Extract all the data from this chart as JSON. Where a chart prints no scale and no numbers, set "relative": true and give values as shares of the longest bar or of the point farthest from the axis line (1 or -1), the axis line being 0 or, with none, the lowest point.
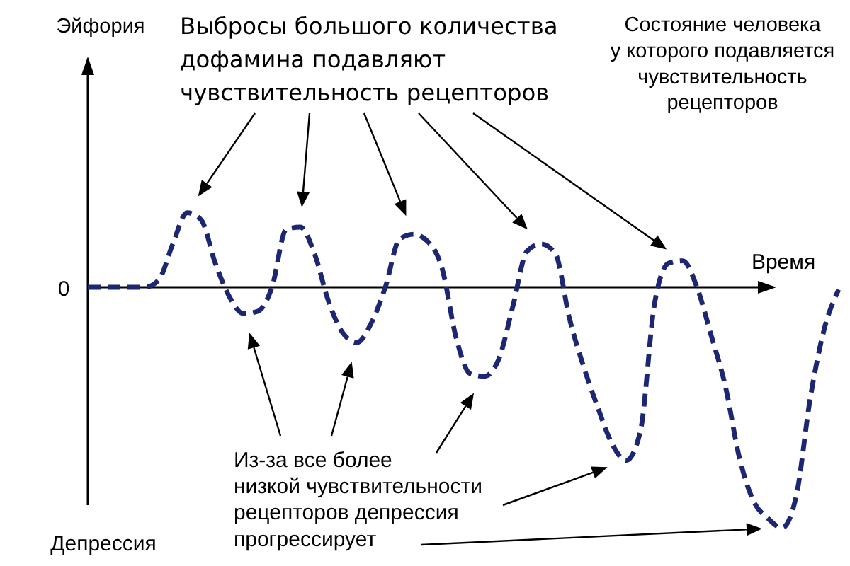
{
  "chart_data": {
    "type": "line",
    "relative": true,
    "xlabel": "Время",
    "line_style": "dashed",
    "categories": [
      null,
      null,
      null,
      null,
      null,
      null,
      null,
      null,
      null,
      null,
      null,
      null,
      null,
      null,
      null,
      null,
      null,
      null,
      null,
      null,
      null,
      null,
      null,
      null,
      null,
      null,
      null,
      null,
      null,
      null,
      null,
      null,
      null,
      null,
      null,
      null,
      null,
      null,
      null,
      null,
      null,
      null,
      null,
      null,
      null,
      null,
      null,
      null,
      null,
      null,
      null,
      null,
      null,
      null
    ],
    "series": [
      {
        "color": "#1c2671",
        "values": [
          0,
          0,
          0,
          0,
          0,
          0.03,
          0.18,
          0.31,
          0.28,
          0.1,
          -0.04,
          -0.11,
          -0.1,
          0,
          0.24,
          0.25,
          0.14,
          -0.06,
          -0.19,
          -0.23,
          -0.15,
          0,
          0.2,
          0.22,
          0.19,
          0.08,
          -0.21,
          -0.36,
          -0.37,
          -0.3,
          -0.08,
          0.15,
          0.18,
          0.14,
          -0.13,
          -0.33,
          -0.5,
          -0.65,
          -0.72,
          -0.6,
          -0.07,
          0.1,
          0.11,
          0,
          -0.2,
          -0.41,
          -0.71,
          -0.89,
          -0.96,
          -1,
          -0.87,
          -0.46,
          -0.17,
          -0.01
        ]
      }
    ],
    "annotations": [
      "Выбросы большого количества\nдофамина подавляют\nчувствительность рецепторов",
      "Состояние человека\nу которого подавляется\nчувствительность\nрецепторов",
      "Из-за все более\nнизкой чувствительности\nрецепторов депрессия\nпрогрессирует",
      "Эйфория",
      "Депрессия",
      "0"
    ]
  }
}
